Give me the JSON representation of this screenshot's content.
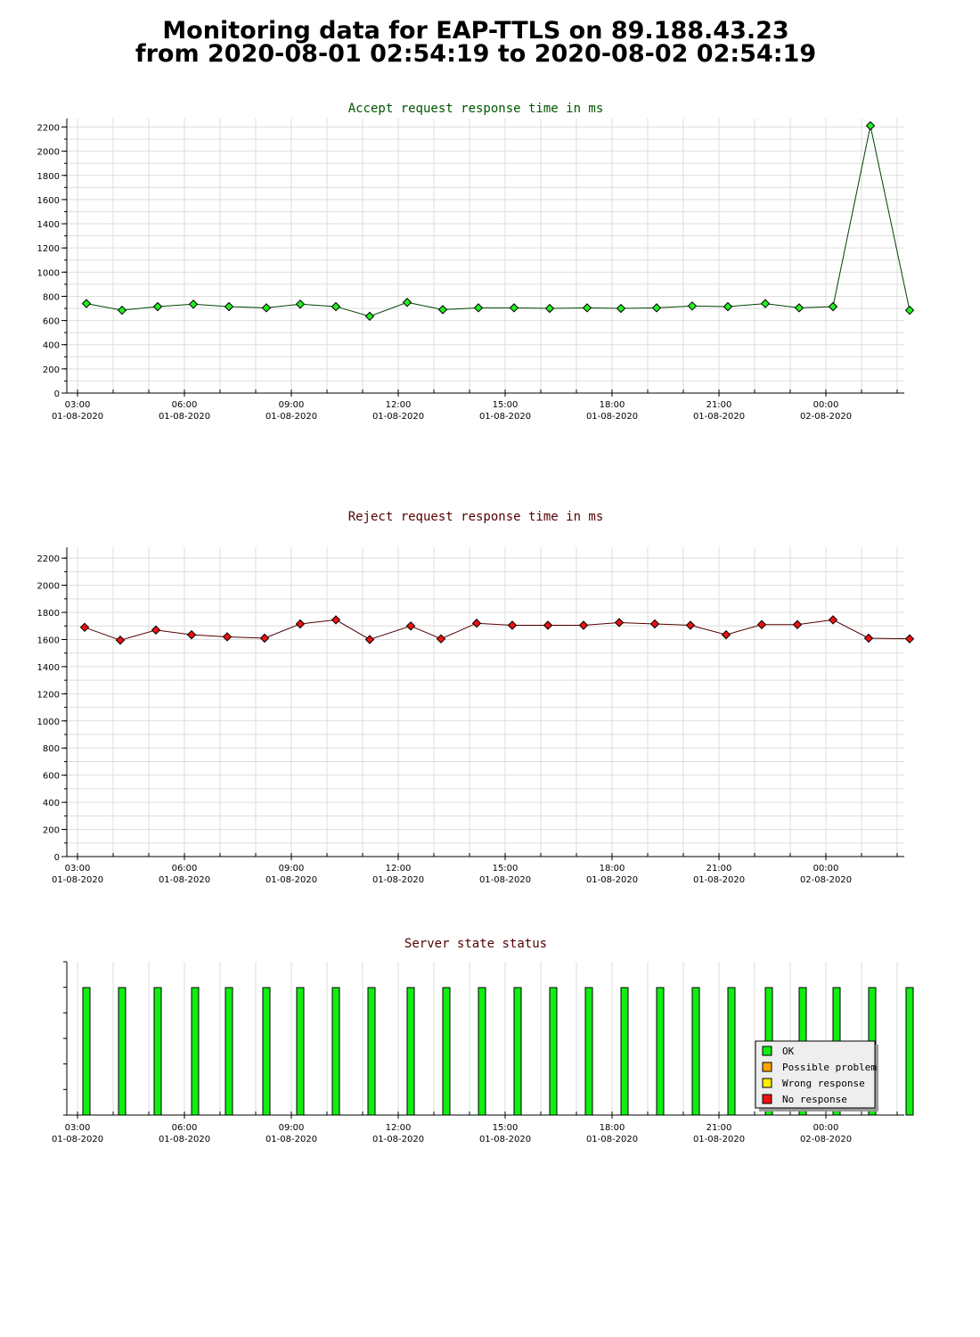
{
  "header": {
    "title_line1": "Monitoring data for EAP-TTLS on 89.188.43.23",
    "title_line2": "from 2020-08-01 02:54:19 to 2020-08-02 02:54:19"
  },
  "colors": {
    "accept_title": "#005500",
    "reject_title": "#550000",
    "status_title": "#550000",
    "accept_line": "#004400",
    "accept_marker": "#22ee22",
    "reject_line": "#550000",
    "reject_marker": "#ee1111",
    "grid": "#dddddd",
    "ok": "#11ee11",
    "possible_problem": "#ffa500",
    "wrong_response": "#ffee00",
    "no_response": "#ee1111"
  },
  "chart_data": [
    {
      "type": "line",
      "title": "Accept request response time in ms",
      "xlabel": "",
      "ylabel": "",
      "x_ticks": [
        {
          "time": "03:00",
          "date": "01-08-2020"
        },
        {
          "time": "06:00",
          "date": "01-08-2020"
        },
        {
          "time": "09:00",
          "date": "01-08-2020"
        },
        {
          "time": "12:00",
          "date": "01-08-2020"
        },
        {
          "time": "15:00",
          "date": "01-08-2020"
        },
        {
          "time": "18:00",
          "date": "01-08-2020"
        },
        {
          "time": "21:00",
          "date": "01-08-2020"
        },
        {
          "time": "00:00",
          "date": "02-08-2020"
        }
      ],
      "ylim": [
        0,
        2270
      ],
      "y_ticks": [
        0,
        200,
        400,
        600,
        800,
        1000,
        1200,
        1400,
        1600,
        1800,
        2000,
        2200
      ],
      "grid": true,
      "x_hours": [
        3.25,
        4.25,
        5.25,
        6.25,
        7.25,
        8.3,
        9.25,
        10.25,
        11.2,
        12.25,
        13.25,
        14.25,
        15.25,
        16.25,
        17.3,
        18.25,
        19.25,
        20.25,
        21.25,
        22.3,
        23.25,
        24.2,
        25.25,
        26.35
      ],
      "values": [
        740,
        685,
        715,
        735,
        715,
        705,
        735,
        715,
        635,
        750,
        690,
        705,
        705,
        700,
        705,
        700,
        705,
        720,
        715,
        740,
        705,
        715,
        2210,
        685
      ]
    },
    {
      "type": "line",
      "title": "Reject request response time in ms",
      "xlabel": "",
      "ylabel": "",
      "x_ticks": [
        {
          "time": "03:00",
          "date": "01-08-2020"
        },
        {
          "time": "06:00",
          "date": "01-08-2020"
        },
        {
          "time": "09:00",
          "date": "01-08-2020"
        },
        {
          "time": "12:00",
          "date": "01-08-2020"
        },
        {
          "time": "15:00",
          "date": "01-08-2020"
        },
        {
          "time": "18:00",
          "date": "01-08-2020"
        },
        {
          "time": "21:00",
          "date": "01-08-2020"
        },
        {
          "time": "00:00",
          "date": "02-08-2020"
        }
      ],
      "ylim": [
        0,
        2280
      ],
      "y_ticks": [
        0,
        200,
        400,
        600,
        800,
        1000,
        1200,
        1400,
        1600,
        1800,
        2000,
        2200
      ],
      "grid": true,
      "x_hours": [
        3.2,
        4.2,
        5.2,
        6.2,
        7.2,
        8.25,
        9.25,
        10.25,
        11.2,
        12.35,
        13.2,
        14.2,
        15.2,
        16.2,
        17.2,
        18.2,
        19.2,
        20.2,
        21.2,
        22.2,
        23.2,
        24.2,
        25.2,
        26.35
      ],
      "values": [
        1690,
        1595,
        1670,
        1635,
        1620,
        1610,
        1715,
        1745,
        1600,
        1700,
        1605,
        1720,
        1705,
        1705,
        1705,
        1725,
        1715,
        1705,
        1635,
        1710,
        1710,
        1745,
        1610,
        1605
      ]
    },
    {
      "type": "bar",
      "title": "Server state status",
      "xlabel": "",
      "ylabel": "",
      "x_ticks": [
        {
          "time": "03:00",
          "date": "01-08-2020"
        },
        {
          "time": "06:00",
          "date": "01-08-2020"
        },
        {
          "time": "09:00",
          "date": "01-08-2020"
        },
        {
          "time": "12:00",
          "date": "01-08-2020"
        },
        {
          "time": "15:00",
          "date": "01-08-2020"
        },
        {
          "time": "18:00",
          "date": "01-08-2020"
        },
        {
          "time": "21:00",
          "date": "01-08-2020"
        },
        {
          "time": "00:00",
          "date": "02-08-2020"
        }
      ],
      "x_hours": [
        3.25,
        4.25,
        5.25,
        6.3,
        7.25,
        8.3,
        9.25,
        10.25,
        11.25,
        12.35,
        13.35,
        14.35,
        15.35,
        16.35,
        17.35,
        18.35,
        19.35,
        20.35,
        21.35,
        22.4,
        23.35,
        24.3,
        25.3,
        26.35
      ],
      "states": [
        "OK",
        "OK",
        "OK",
        "OK",
        "OK",
        "OK",
        "OK",
        "OK",
        "OK",
        "OK",
        "OK",
        "OK",
        "OK",
        "OK",
        "OK",
        "OK",
        "OK",
        "OK",
        "OK",
        "OK",
        "OK",
        "OK",
        "OK",
        "OK"
      ],
      "legend": [
        "OK",
        "Possible problem",
        "Wrong response",
        "No response"
      ],
      "legend_position": "right"
    }
  ]
}
